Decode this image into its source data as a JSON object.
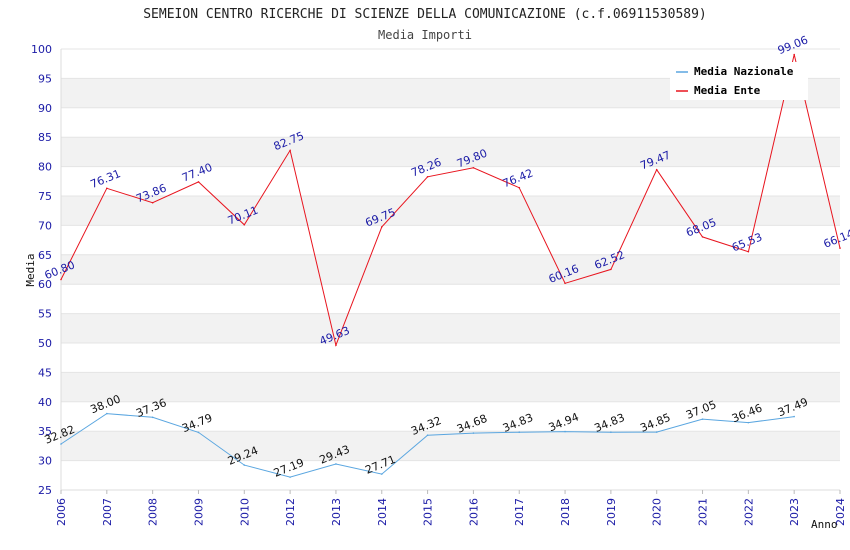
{
  "chart_data": {
    "type": "line",
    "title": "SEMEION CENTRO RICERCHE DI SCIENZE DELLA COMUNICAZIONE (c.f.06911530589)",
    "subtitle": "Media Importi",
    "xlabel": "Anno",
    "ylabel": "Media",
    "ylim": [
      25,
      100
    ],
    "yticks": [
      "25",
      "30",
      "35",
      "40",
      "45",
      "50",
      "55",
      "60",
      "65",
      "70",
      "75",
      "80",
      "85",
      "90",
      "95",
      "100"
    ],
    "categories": [
      "2006",
      "2007",
      "2008",
      "2009",
      "2010",
      "2012",
      "2013",
      "2014",
      "2015",
      "2016",
      "2017",
      "2018",
      "2019",
      "2020",
      "2021",
      "2022",
      "2023",
      "2024"
    ],
    "grid": "horizontal alternating bands",
    "legend_position": "top-right",
    "series": [
      {
        "name": "Media Nazionale",
        "color": "#5aa6e0",
        "label_color": "#111111",
        "values": [
          32.82,
          38.0,
          37.36,
          34.79,
          29.24,
          27.19,
          29.43,
          27.71,
          34.32,
          34.68,
          34.83,
          34.94,
          34.83,
          34.85,
          37.05,
          36.46,
          37.49,
          null
        ],
        "labels": [
          "32.82",
          "38.00",
          "37.36",
          "34.79",
          "29.24",
          "27.19",
          "29.43",
          "27.71",
          "34.32",
          "34.68",
          "34.83",
          "34.94",
          "34.83",
          "34.85",
          "37.05",
          "36.46",
          "37.49",
          ""
        ]
      },
      {
        "name": "Media Ente",
        "color": "#e8141e",
        "label_color": "#1a1aa6",
        "values": [
          60.8,
          76.31,
          73.86,
          77.4,
          70.11,
          82.75,
          49.63,
          69.75,
          78.26,
          79.8,
          76.42,
          60.16,
          62.52,
          79.47,
          68.05,
          65.53,
          99.06,
          66.14
        ],
        "labels": [
          "60.80",
          "76.31",
          "73.86",
          "77.40",
          "70.11",
          "82.75",
          "49.63",
          "69.75",
          "78.26",
          "79.80",
          "76.42",
          "60.16",
          "62.52",
          "79.47",
          "68.05",
          "65.53",
          "99.06",
          "66.14"
        ]
      }
    ]
  }
}
